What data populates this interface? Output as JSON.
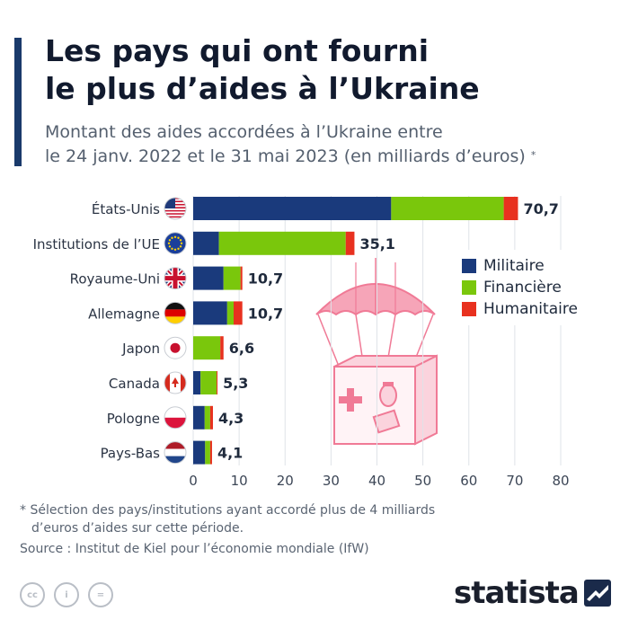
{
  "header": {
    "title_line1": "Les pays qui ont fourni",
    "title_line2": "le plus d’aides à l’Ukraine",
    "subtitle_line1": "Montant des aides accordées à l’Ukraine entre",
    "subtitle_line2": "le 24 janv. 2022 et le 31 mai 2023 (en milliards d’euros)",
    "subtitle_mark": "*"
  },
  "colors": {
    "militaire": "#1a3a7c",
    "financiere": "#7ac70c",
    "humanitaire": "#e8311f",
    "title_bar": "#1a3a6b",
    "parachute": "#f07a96"
  },
  "chart_data": {
    "type": "bar",
    "orientation": "horizontal",
    "stacked": true,
    "categories": [
      "États-Unis",
      "Institutions de l’UE",
      "Royaume-Uni",
      "Allemagne",
      "Japon",
      "Canada",
      "Pologne",
      "Pays-Bas"
    ],
    "series": [
      {
        "name": "Militaire",
        "values": [
          43.1,
          5.6,
          6.6,
          7.4,
          0.0,
          1.6,
          2.5,
          2.6
        ]
      },
      {
        "name": "Financière",
        "values": [
          24.5,
          27.6,
          3.7,
          1.4,
          5.9,
          3.5,
          1.2,
          1.1
        ]
      },
      {
        "name": "Humanitaire",
        "values": [
          3.1,
          1.9,
          0.4,
          1.9,
          0.7,
          0.2,
          0.6,
          0.4
        ]
      }
    ],
    "totals": [
      "70,7",
      "35,1",
      "10,7",
      "10,7",
      "6,6",
      "5,3",
      "4,3",
      "4,1"
    ],
    "xticks": [
      "0",
      "10",
      "20",
      "30",
      "40",
      "50",
      "60",
      "70",
      "80"
    ],
    "xlim": [
      0,
      80
    ],
    "grid": true,
    "legend_position": "right",
    "flags": [
      "us-flag-icon",
      "eu-flag-icon",
      "uk-flag-icon",
      "germany-flag-icon",
      "japan-flag-icon",
      "canada-flag-icon",
      "poland-flag-icon",
      "netherlands-flag-icon"
    ]
  },
  "legend": {
    "items": [
      {
        "label": "Militaire",
        "color": "#1a3a7c"
      },
      {
        "label": "Financière",
        "color": "#7ac70c"
      },
      {
        "label": "Humanitaire",
        "color": "#e8311f"
      }
    ]
  },
  "footer": {
    "note_line1": "* Sélection des pays/institutions ayant accordé plus de 4 milliards",
    "note_line2": "d’euros d’aides sur cette période.",
    "source": "Source : Institut de Kiel pour l’économie mondiale (IfW)",
    "brand": "statista",
    "icons": [
      "cc-icon",
      "attribution-icon",
      "no-derivatives-icon"
    ]
  }
}
